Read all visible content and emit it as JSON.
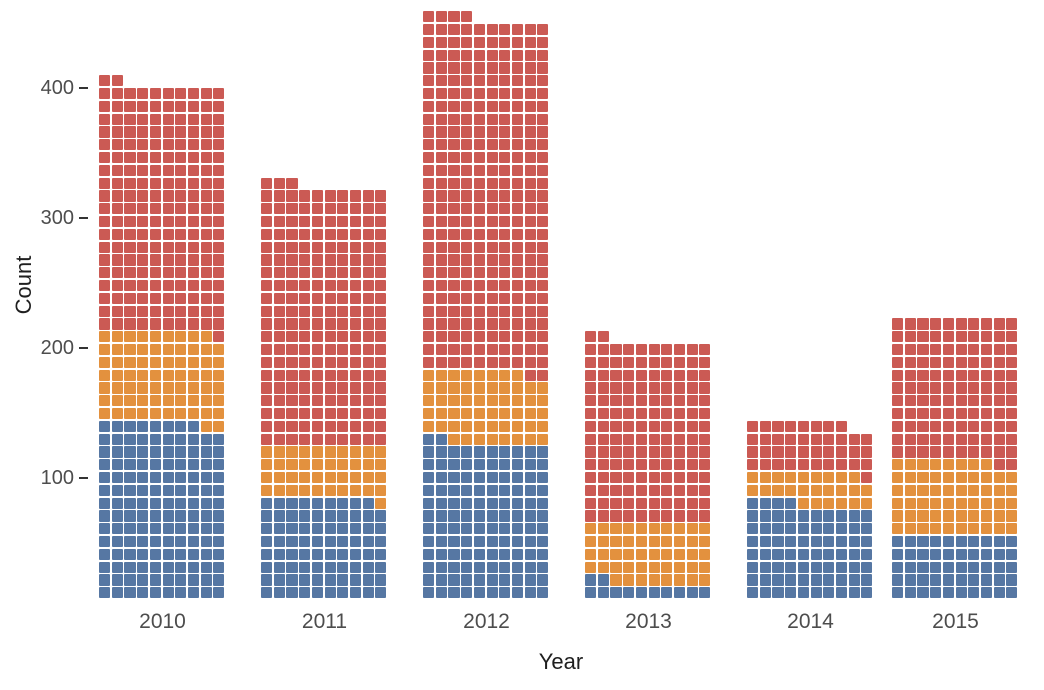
{
  "chart_data": {
    "type": "bar",
    "subtype": "waffle-stacked-bar",
    "title": "",
    "xlabel": "Year",
    "ylabel": "Count",
    "categories": [
      "2010",
      "2011",
      "2012",
      "2013",
      "2014",
      "2015"
    ],
    "series": [
      {
        "name": "bottom-blue-segment",
        "color": "#5677A3",
        "values": [
          138,
          79,
          122,
          12,
          74,
          50
        ]
      },
      {
        "name": "middle-orange-segment",
        "color": "#E3913E",
        "values": [
          71,
          41,
          56,
          48,
          25,
          58
        ]
      },
      {
        "name": "top-red-segment",
        "color": "#CB5A54",
        "values": [
          193,
          203,
          276,
          142,
          39,
          112
        ]
      }
    ],
    "totals": [
      402,
      323,
      454,
      202,
      138,
      220
    ],
    "unit_per_square": 1,
    "columns_per_bar": 10,
    "y_ticks": [
      100,
      200,
      300,
      400
    ],
    "ylim": [
      0,
      460
    ],
    "grid": false,
    "legend": false,
    "background": "#FFFFFF"
  },
  "colors": {
    "axis_text": "#4d4d4d",
    "axis_title": "#1f1f1f",
    "tick_mark": "#333333"
  }
}
